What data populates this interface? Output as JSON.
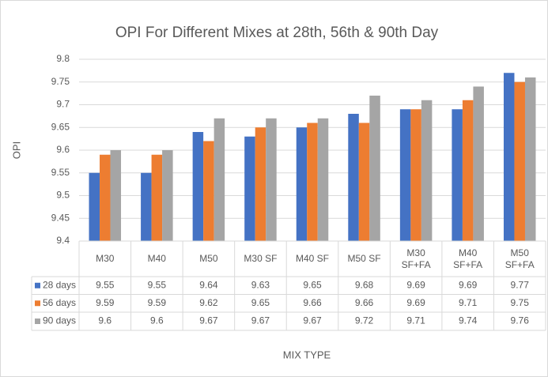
{
  "chart_data": {
    "type": "bar",
    "title": "OPI For Different Mixes at 28th, 56th & 90th Day",
    "y_label": "OPI",
    "x_label": "MIX TYPE",
    "categories": [
      "M30",
      "M40",
      "M50",
      "M30 SF",
      "M40 SF",
      "M50 SF",
      "M30 SF+FA",
      "M40 SF+FA",
      "M50 SF+FA"
    ],
    "series": [
      {
        "name": "28 days",
        "color": "#4472c4",
        "values": [
          9.55,
          9.55,
          9.64,
          9.63,
          9.65,
          9.68,
          9.69,
          9.69,
          9.77
        ]
      },
      {
        "name": "56 days",
        "color": "#ed7d31",
        "values": [
          9.59,
          9.59,
          9.62,
          9.65,
          9.66,
          9.66,
          9.69,
          9.71,
          9.75
        ]
      },
      {
        "name": "90 days",
        "color": "#a5a5a5",
        "values": [
          9.6,
          9.6,
          9.67,
          9.67,
          9.67,
          9.72,
          9.71,
          9.74,
          9.76
        ]
      }
    ],
    "ylim": [
      9.4,
      9.8
    ],
    "yticks": [
      9.4,
      9.45,
      9.5,
      9.55,
      9.6,
      9.65,
      9.7,
      9.75,
      9.8
    ],
    "grid": true
  }
}
